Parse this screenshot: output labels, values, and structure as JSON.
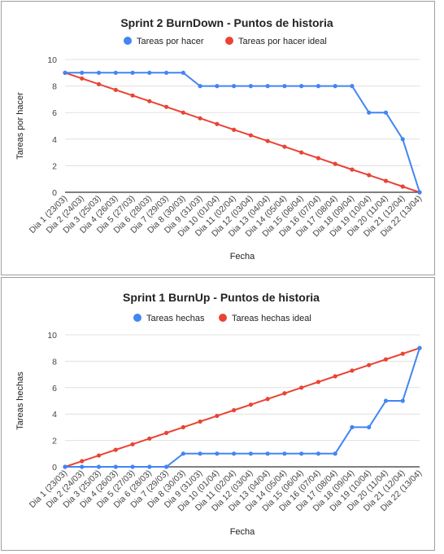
{
  "colors": {
    "actual": "#4285f4",
    "ideal": "#ea4335",
    "axis": "#333333",
    "grid": "#e0e0e0",
    "text": "#222222",
    "tick": "#444444"
  },
  "chart_data": [
    {
      "type": "line",
      "title": "Sprint 2 BurnDown - Puntos de historia",
      "xlabel": "Fecha",
      "ylabel": "Tareas por hacer",
      "ylim": [
        0,
        10
      ],
      "yticks": [
        "0",
        "2",
        "4",
        "6",
        "8",
        "10"
      ],
      "grid": true,
      "legend_position": "top",
      "categories": [
        "Dia 1 (23/03)",
        "Dia 2 (24/03)",
        "Dia 3 (25/03)",
        "Dia 4 (26/03)",
        "Dia 5 (27/03)",
        "Dia 6 (28/03)",
        "Dia 7 (29/03)",
        "Dia 8 (30/03)",
        "Dia 9 (31/03)",
        "Dia 10 (01/04)",
        "Dia 11 (02/04)",
        "Dia 12 (03/04)",
        "Dia 13 (04/04)",
        "Dia 14 (05/04)",
        "Dia 15 (06/04)",
        "Dia 16 (07/04)",
        "Dia 17 (08/04)",
        "Dia 18 (09/04)",
        "Dia 19 (10/04)",
        "Dia 20 (11/04)",
        "Dia 21 (12/04)",
        "Dia 22 (13/04)"
      ],
      "series": [
        {
          "name": "Tareas por hacer",
          "color": "#4285f4",
          "values": [
            9,
            9,
            9,
            9,
            9,
            9,
            9,
            9,
            8,
            8,
            8,
            8,
            8,
            8,
            8,
            8,
            8,
            8,
            6,
            6,
            4,
            0
          ]
        },
        {
          "name": "Tareas por hacer ideal",
          "color": "#ea4335",
          "values": [
            9,
            8.57,
            8.14,
            7.71,
            7.29,
            6.86,
            6.43,
            6,
            5.57,
            5.14,
            4.71,
            4.29,
            3.86,
            3.43,
            3,
            2.57,
            2.14,
            1.71,
            1.29,
            0.86,
            0.43,
            0
          ]
        }
      ]
    },
    {
      "type": "line",
      "title": "Sprint 1 BurnUp - Puntos de historia",
      "xlabel": "Fecha",
      "ylabel": "Tareas hechas",
      "ylim": [
        0,
        10
      ],
      "yticks": [
        "0",
        "2",
        "4",
        "6",
        "8",
        "10"
      ],
      "grid": true,
      "legend_position": "top",
      "categories": [
        "Dia 1 (23/03)",
        "Dia 2 (24/03)",
        "Dia 3 (25/03)",
        "Dia 4 (26/03)",
        "Dia 5 (27/03)",
        "Dia 6 (28/03)",
        "Dia 7 (29/03)",
        "Dia 8 (30/03)",
        "Dia 9 (31/03)",
        "Dia 10 (01/04)",
        "Dia 11 (02/04)",
        "Dia 12 (03/04)",
        "Dia 13 (04/04)",
        "Dia 14 (05/04)",
        "Dia 15 (06/04)",
        "Dia 16 (07/04)",
        "Dia 17 (08/04)",
        "Dia 18 (09/04)",
        "Dia 19 (10/04)",
        "Dia 20 (11/04)",
        "Dia 21 (12/04)",
        "Dia 22 (13/04)"
      ],
      "series": [
        {
          "name": "Tareas hechas",
          "color": "#4285f4",
          "values": [
            0,
            0,
            0,
            0,
            0,
            0,
            0,
            1,
            1,
            1,
            1,
            1,
            1,
            1,
            1,
            1,
            1,
            3,
            3,
            5,
            5,
            9
          ]
        },
        {
          "name": "Tareas hechas ideal",
          "color": "#ea4335",
          "values": [
            0,
            0.43,
            0.86,
            1.29,
            1.71,
            2.14,
            2.57,
            3,
            3.43,
            3.86,
            4.29,
            4.71,
            5.14,
            5.57,
            6,
            6.43,
            6.86,
            7.29,
            7.71,
            8.14,
            8.57,
            9
          ]
        }
      ]
    }
  ]
}
